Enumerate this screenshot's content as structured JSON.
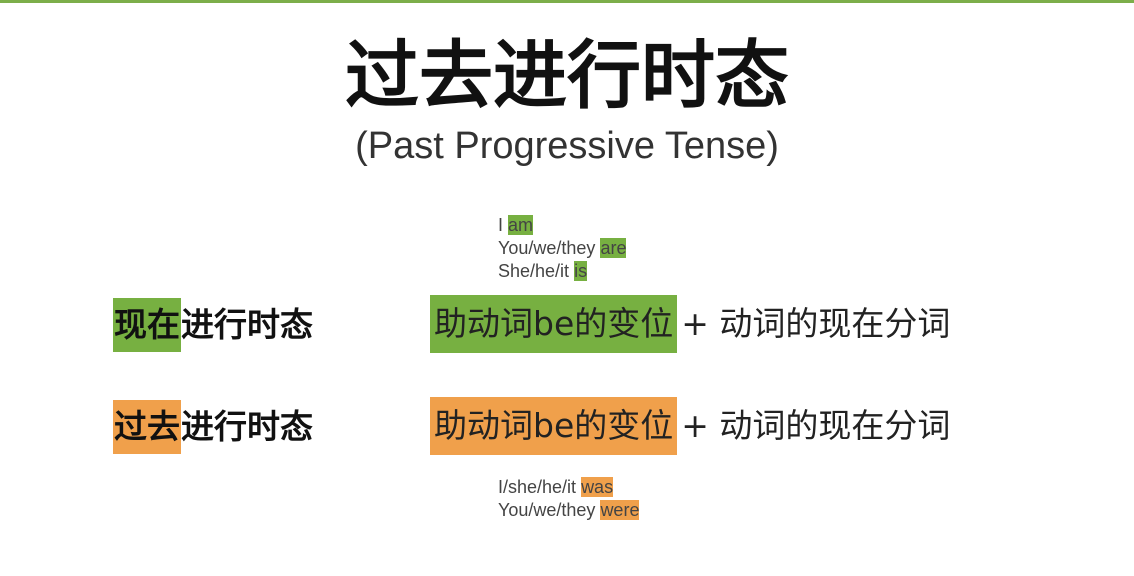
{
  "title": "过去进行时态",
  "subtitle": "(Past Progressive Tense)",
  "present_conjugations": [
    {
      "subject": "I",
      "verb": "am"
    },
    {
      "subject": "You/we/they",
      "verb": "are"
    },
    {
      "subject": "She/he/it",
      "verb": "is"
    }
  ],
  "rows": [
    {
      "label_highlight": "现在",
      "label_rest": "进行时态",
      "formula_box": "助动词be的变位",
      "formula_rest": "+ 动词的现在分词"
    },
    {
      "label_highlight": "过去",
      "label_rest": "进行时态",
      "formula_box": "助动词be的变位",
      "formula_rest": "+ 动词的现在分词"
    }
  ],
  "past_conjugations": [
    {
      "subject": "I/she/he/it",
      "verb": "was"
    },
    {
      "subject": "You/we/they",
      "verb": "were"
    }
  ],
  "colors": {
    "green": "#77b041",
    "orange": "#f0a04b",
    "top_rule": "#7cae4a"
  }
}
